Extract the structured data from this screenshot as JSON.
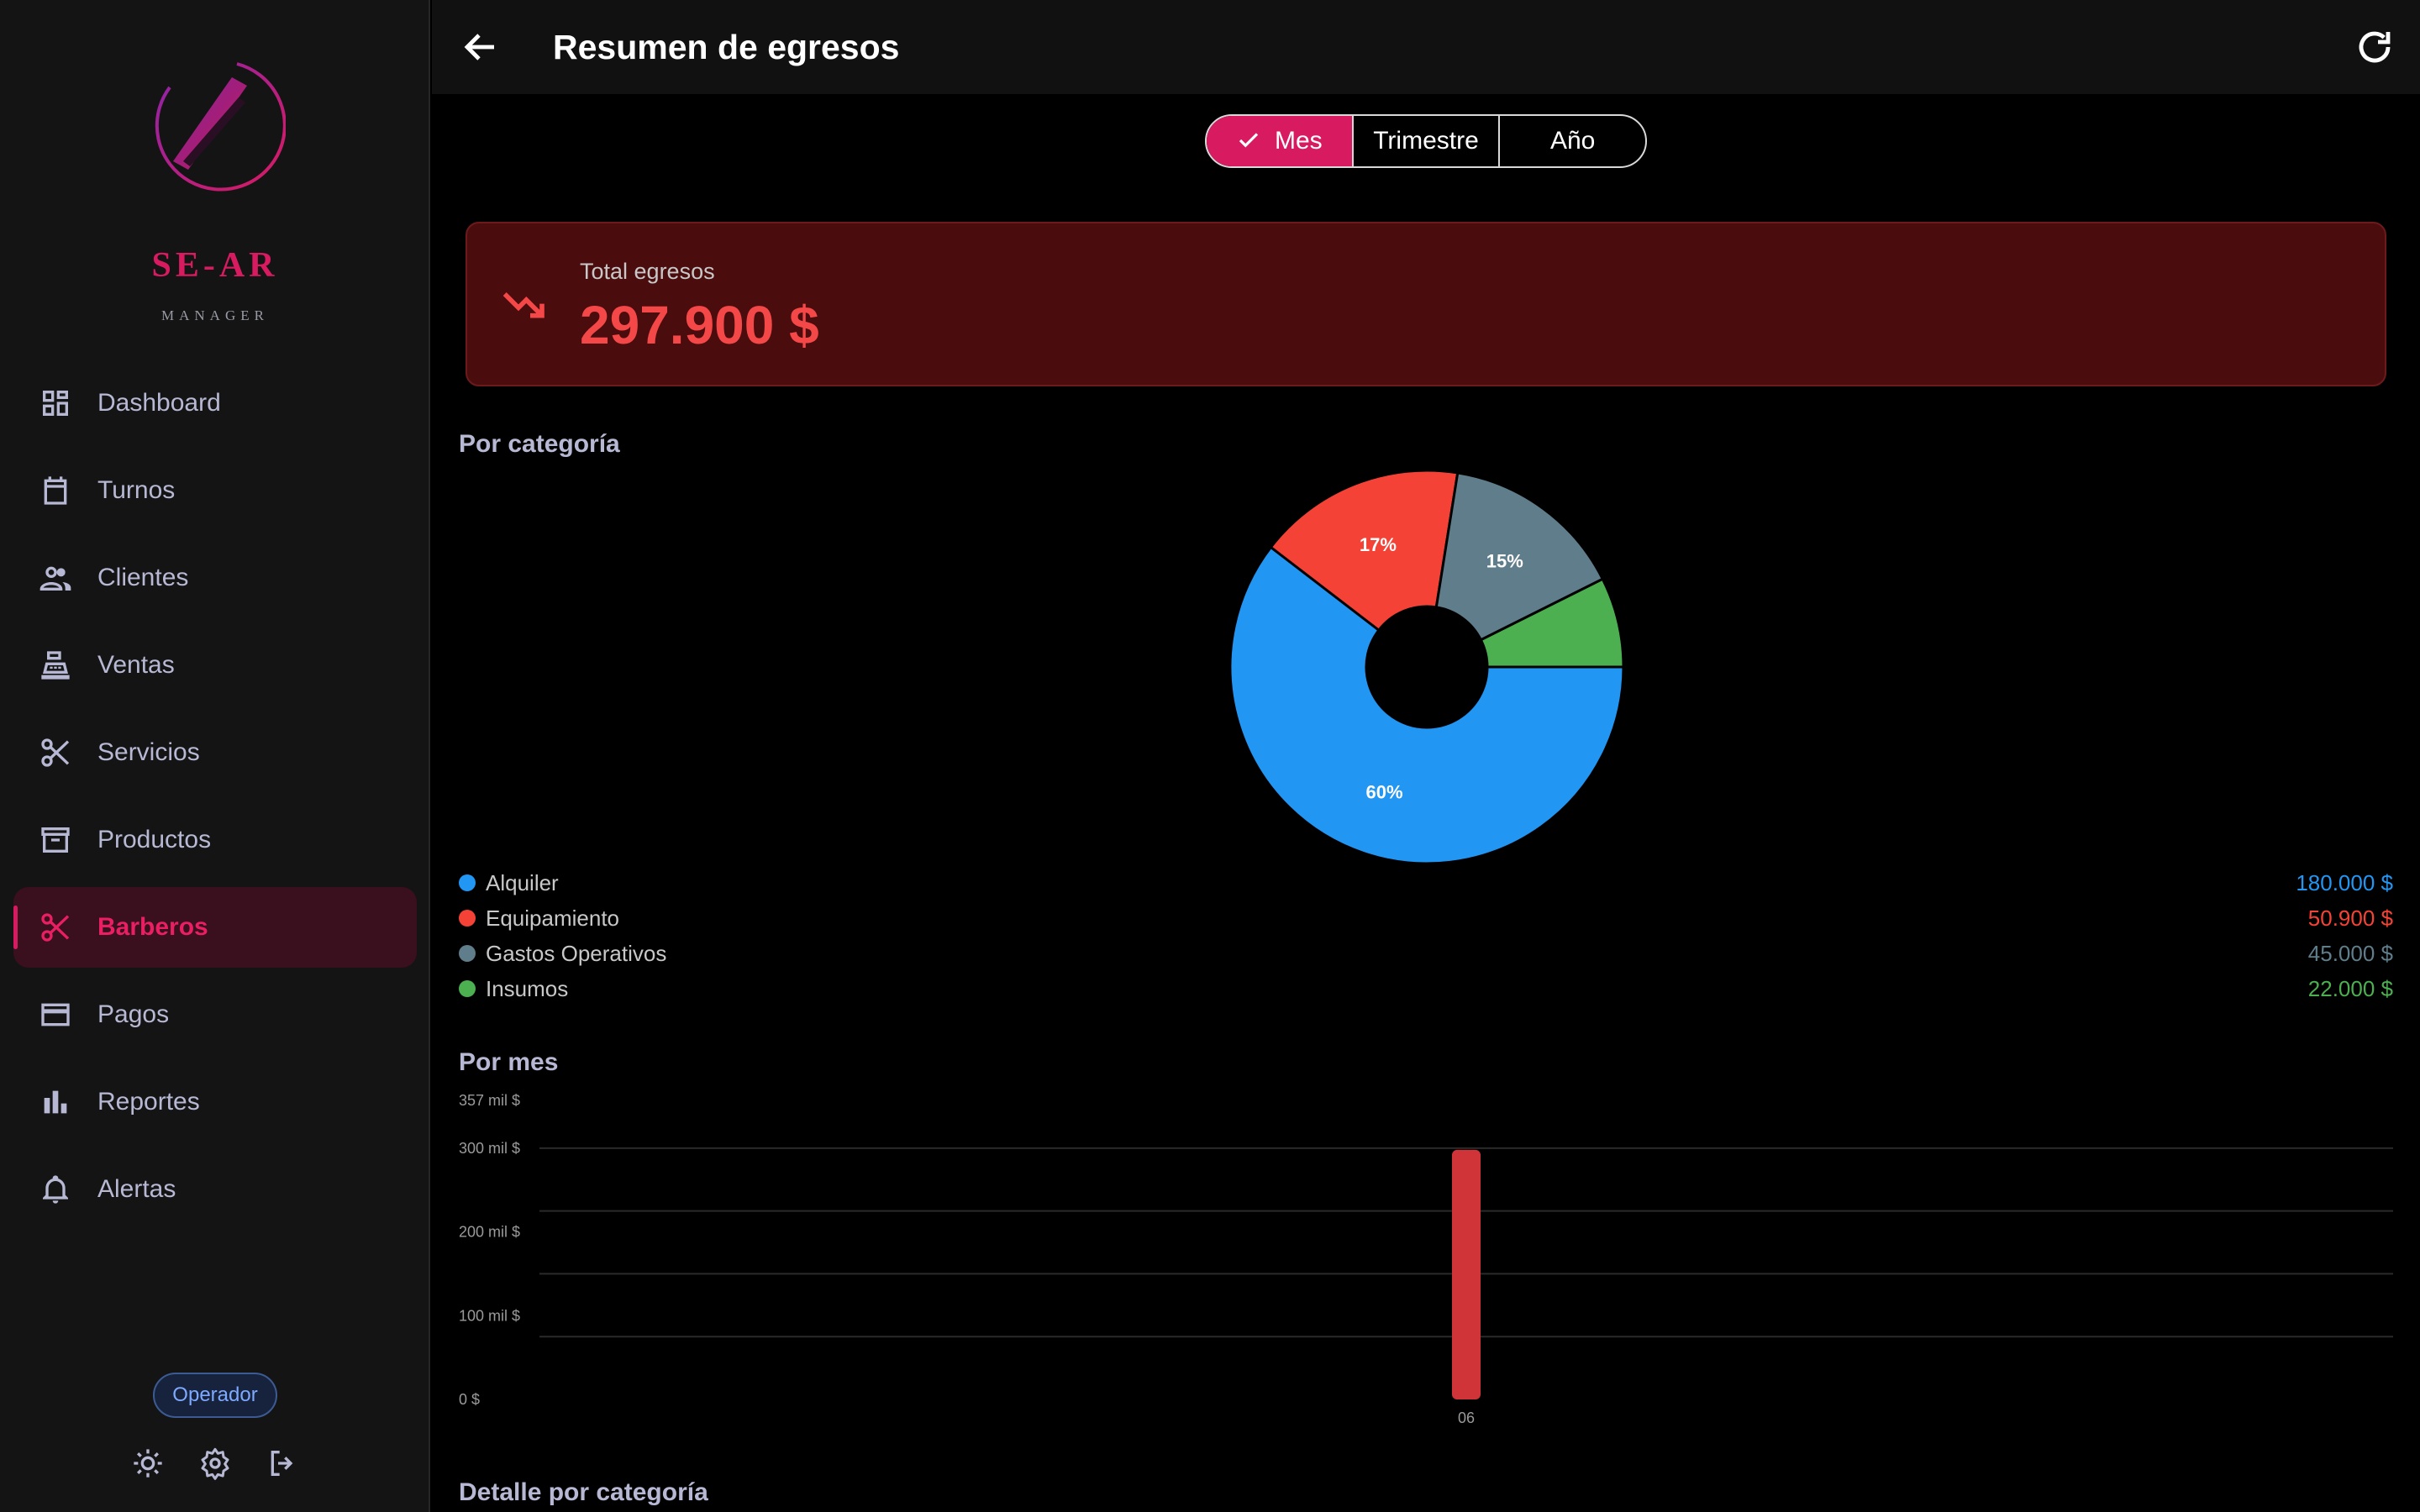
{
  "app": {
    "brand": "SE-AR",
    "brand_sub": "MANAGER",
    "page_title": "Resumen de egresos"
  },
  "sidebar": {
    "items": [
      {
        "label": "Dashboard",
        "icon": "dashboard-icon"
      },
      {
        "label": "Turnos",
        "icon": "calendar-icon"
      },
      {
        "label": "Clientes",
        "icon": "people-icon"
      },
      {
        "label": "Ventas",
        "icon": "cash-register-icon"
      },
      {
        "label": "Servicios",
        "icon": "scissors-icon"
      },
      {
        "label": "Productos",
        "icon": "archive-box-icon"
      },
      {
        "label": "Barberos",
        "icon": "scissors-icon",
        "active": true
      },
      {
        "label": "Pagos",
        "icon": "credit-card-icon"
      },
      {
        "label": "Reportes",
        "icon": "bar-chart-icon"
      },
      {
        "label": "Alertas",
        "icon": "bell-icon"
      }
    ],
    "role_badge": "Operador",
    "footer_icons": [
      "sun-icon",
      "gear-icon",
      "logout-icon"
    ]
  },
  "period_selector": {
    "options": [
      "Mes",
      "Trimestre",
      "Año"
    ],
    "selected": "Mes"
  },
  "total": {
    "label": "Total egresos",
    "value": "297.900 $"
  },
  "sections": {
    "by_category": "Por categoría",
    "by_month": "Por mes",
    "detail": "Detalle por categoría"
  },
  "colors": {
    "accent": "#d81b60",
    "alquiler": "#2196f3",
    "equipamiento": "#f44336",
    "gastos_operativos": "#607d8b",
    "insumos": "#4caf50",
    "bar": "#d13438",
    "total_value": "#f44848"
  },
  "chart_data": [
    {
      "type": "pie",
      "donut": true,
      "categories": [
        "Alquiler",
        "Equipamiento",
        "Gastos Operativos",
        "Insumos"
      ],
      "values": [
        180000,
        50900,
        45000,
        22000
      ],
      "value_labels": [
        "180.000 $",
        "50.900 $",
        "45.000 $",
        "22.000 $"
      ],
      "slice_labels": [
        "60%",
        "17%",
        "15%",
        ""
      ],
      "legend": "bottom"
    },
    {
      "type": "bar",
      "categories": [
        "06"
      ],
      "values": [
        297900
      ],
      "y_ticks": [
        "0 $",
        "100 mil $",
        "200 mil $",
        "300 mil $",
        "357 mil $"
      ],
      "ylim": [
        0,
        357000
      ],
      "grid": true
    }
  ]
}
